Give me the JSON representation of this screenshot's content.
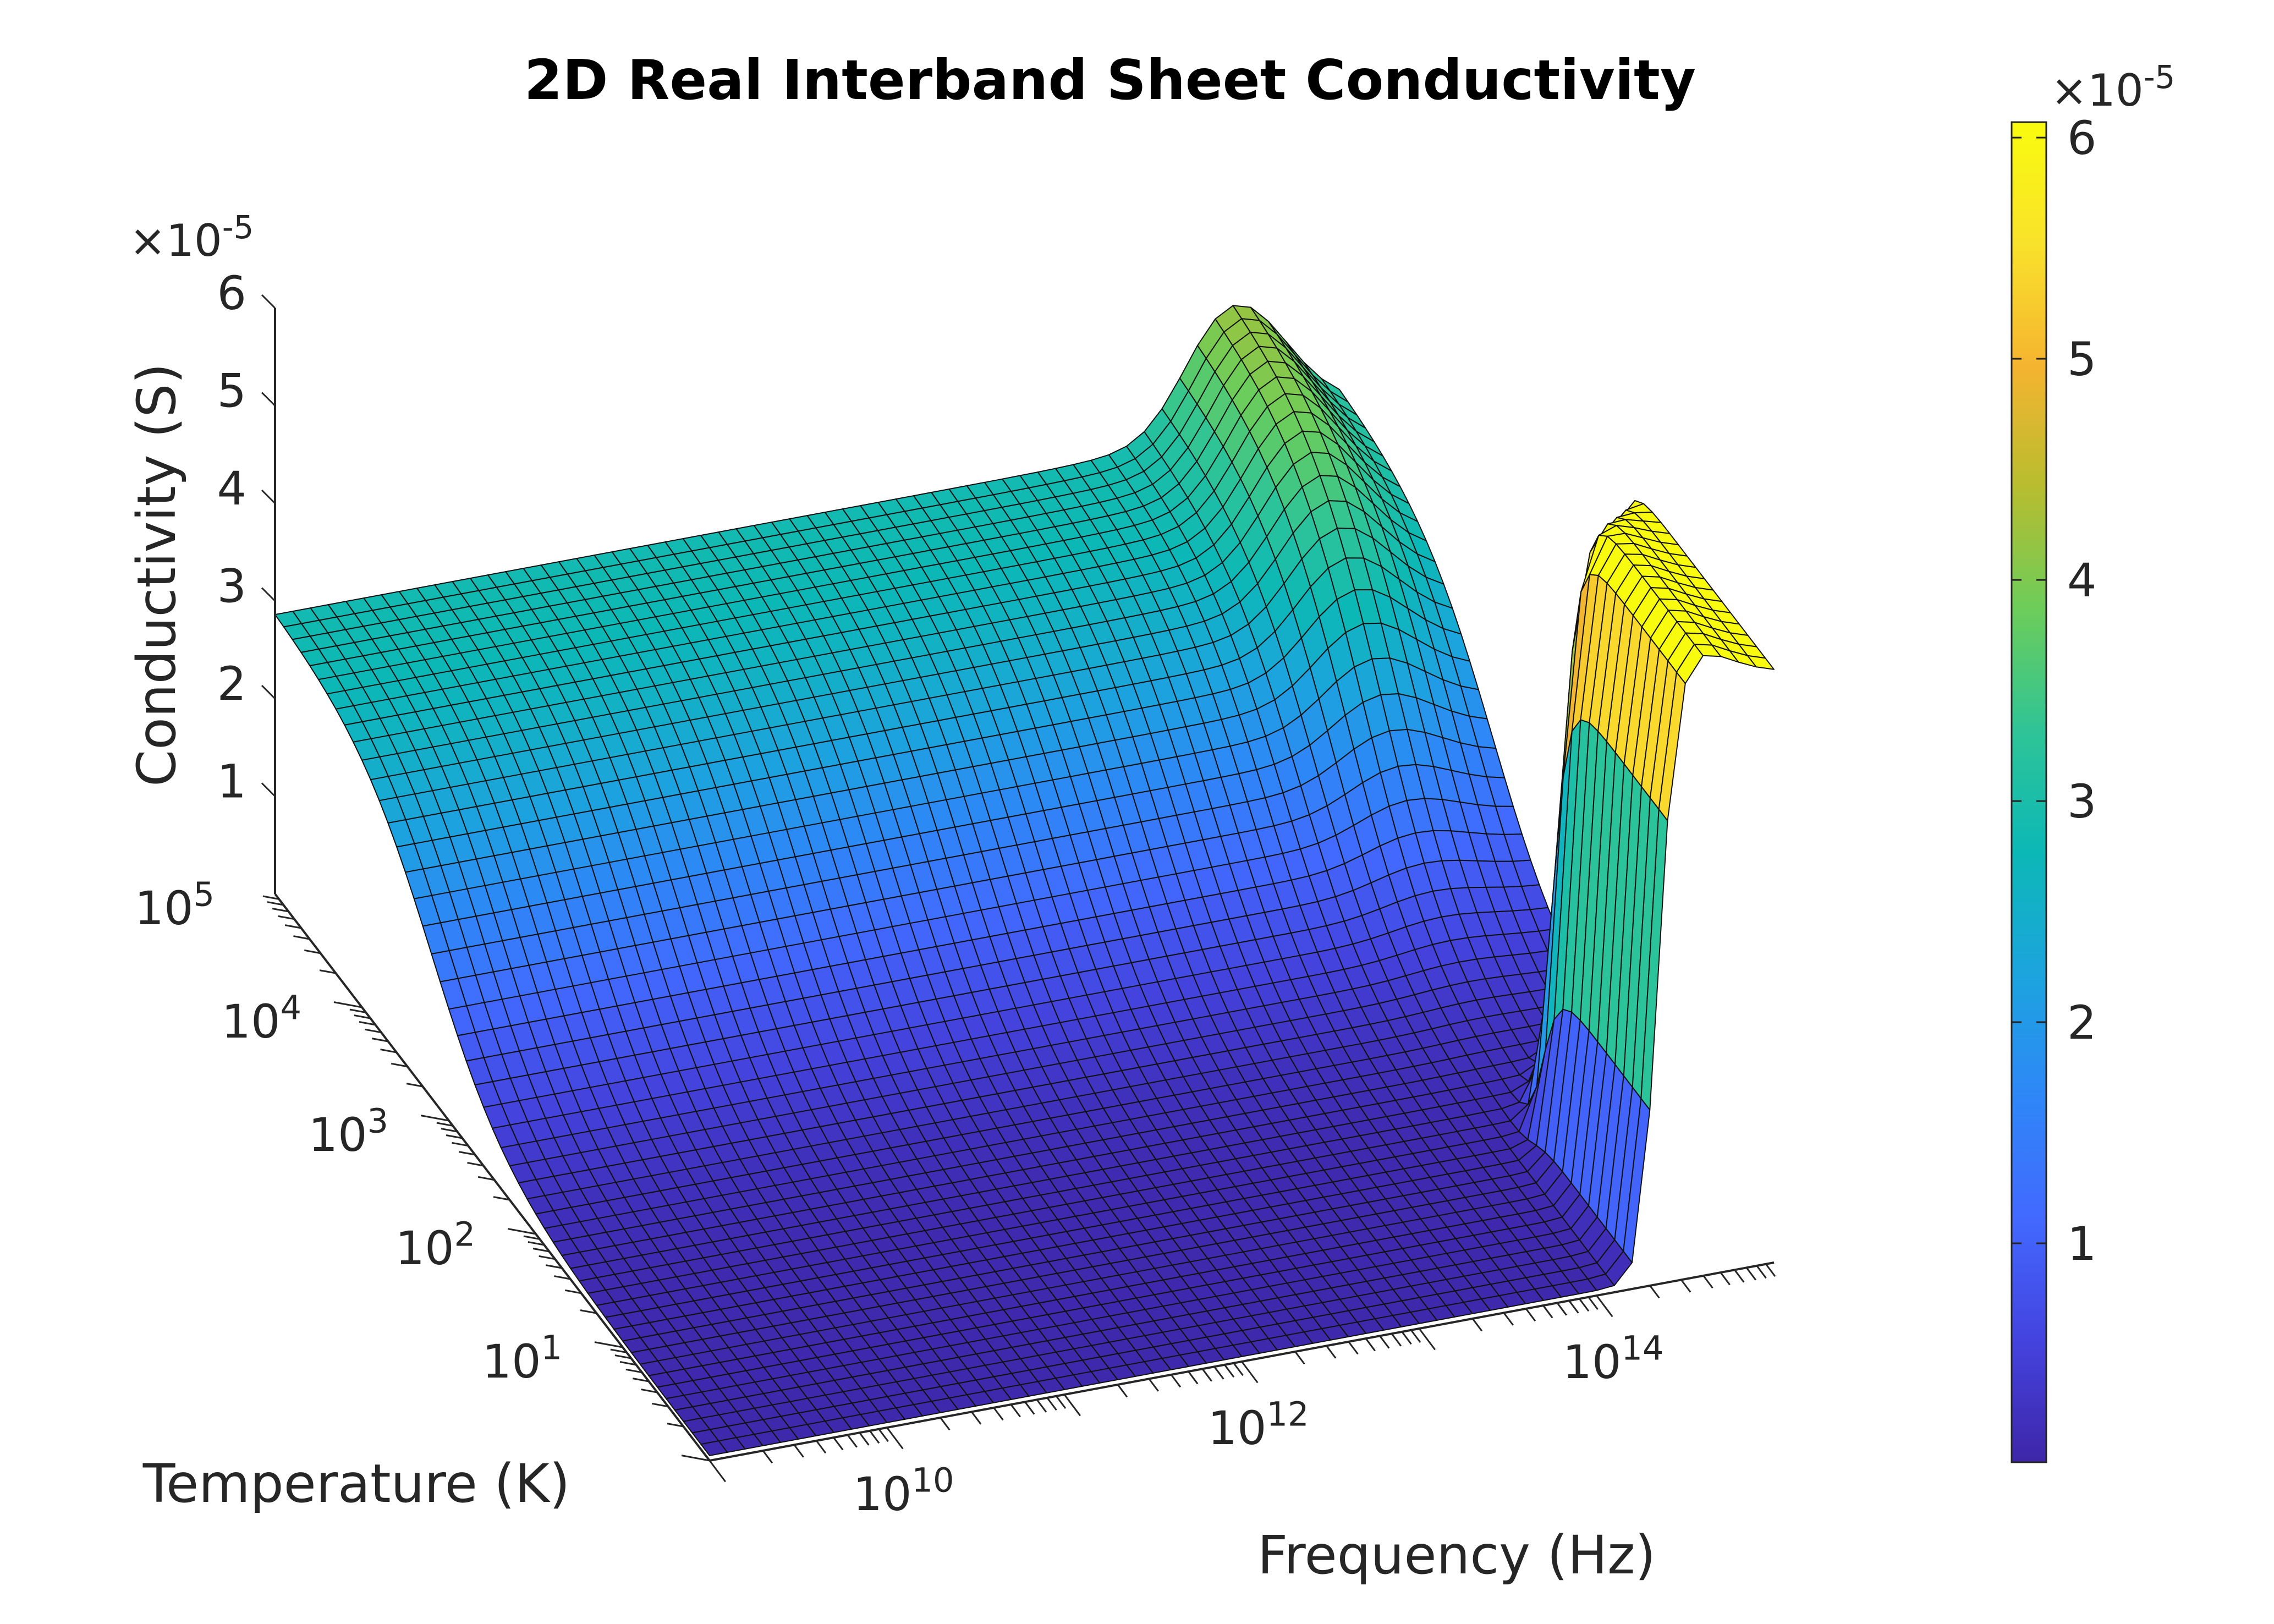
{
  "chart_data": {
    "type": "surface",
    "title": "2D Real Interband Sheet Conductivity",
    "xlabel": "Frequency (Hz)",
    "ylabel": "Temperature (K)",
    "zlabel": "Conductivity (S)",
    "x_scale": "log",
    "y_scale": "log",
    "xlim": [
      1000000000,
      1000000000000000
    ],
    "ylim": [
      1,
      100000
    ],
    "zlim": [
      0,
      6e-05
    ],
    "x_tick_values": [
      10000000000,
      1000000000000,
      100000000000000
    ],
    "x_tick_labels": [
      {
        "base": "10",
        "exp": "10"
      },
      {
        "base": "10",
        "exp": "12"
      },
      {
        "base": "10",
        "exp": "14"
      }
    ],
    "y_tick_values": [
      10,
      100,
      1000,
      10000,
      100000
    ],
    "y_tick_labels": [
      {
        "base": "10",
        "exp": "1"
      },
      {
        "base": "10",
        "exp": "2"
      },
      {
        "base": "10",
        "exp": "3"
      },
      {
        "base": "10",
        "exp": "4"
      },
      {
        "base": "10",
        "exp": "5"
      }
    ],
    "z_tick_values": [
      1,
      2,
      3,
      4,
      5,
      6
    ],
    "z_tick_labels": [
      "1",
      "2",
      "3",
      "4",
      "5",
      "6"
    ],
    "z_multiplier": {
      "prefix": "×10",
      "exp": "-5"
    },
    "grid": false,
    "colormap": "parula",
    "colormap_stops": [
      "#3e26a8",
      "#4443df",
      "#4269fe",
      "#2e87f7",
      "#1ca4de",
      "#0cb8b6",
      "#2ec497",
      "#6ccd5a",
      "#b7bd2f",
      "#f5b430",
      "#f9e22b",
      "#f9fb0e"
    ],
    "colorbar": {
      "tick_values": [
        1,
        2,
        3,
        4,
        5,
        6
      ],
      "tick_labels": [
        "1",
        "2",
        "3",
        "4",
        "5",
        "6"
      ],
      "multiplier": {
        "prefix": "×10",
        "exp": "-5"
      },
      "range": [
        1e-07,
        6.07e-05
      ],
      "position": "right"
    },
    "surface_samples": [
      {
        "frequency_hz": 1000000000,
        "temperature_k": 1,
        "conductivity_s": 1e-07
      },
      {
        "frequency_hz": 1000000000,
        "temperature_k": 10,
        "conductivity_s": 2e-07
      },
      {
        "frequency_hz": 1000000000,
        "temperature_k": 100,
        "conductivity_s": 1e-06
      },
      {
        "frequency_hz": 1000000000,
        "temperature_k": 1000,
        "conductivity_s": 7e-06
      },
      {
        "frequency_hz": 1000000000,
        "temperature_k": 10000,
        "conductivity_s": 2.2e-05
      },
      {
        "frequency_hz": 1000000000,
        "temperature_k": 100000,
        "conductivity_s": 2.9e-05
      },
      {
        "frequency_hz": 100000000000000,
        "temperature_k": 1,
        "conductivity_s": 5e-07
      },
      {
        "frequency_hz": 300000000000000,
        "temperature_k": 1,
        "conductivity_s": 6e-05
      },
      {
        "frequency_hz": 1000000000000000,
        "temperature_k": 1,
        "conductivity_s": 6e-05
      },
      {
        "frequency_hz": 300000000000000,
        "temperature_k": 100000,
        "conductivity_s": 6.07e-05
      },
      {
        "frequency_hz": 1000000000000000,
        "temperature_k": 100000,
        "conductivity_s": 6e-05
      }
    ]
  }
}
